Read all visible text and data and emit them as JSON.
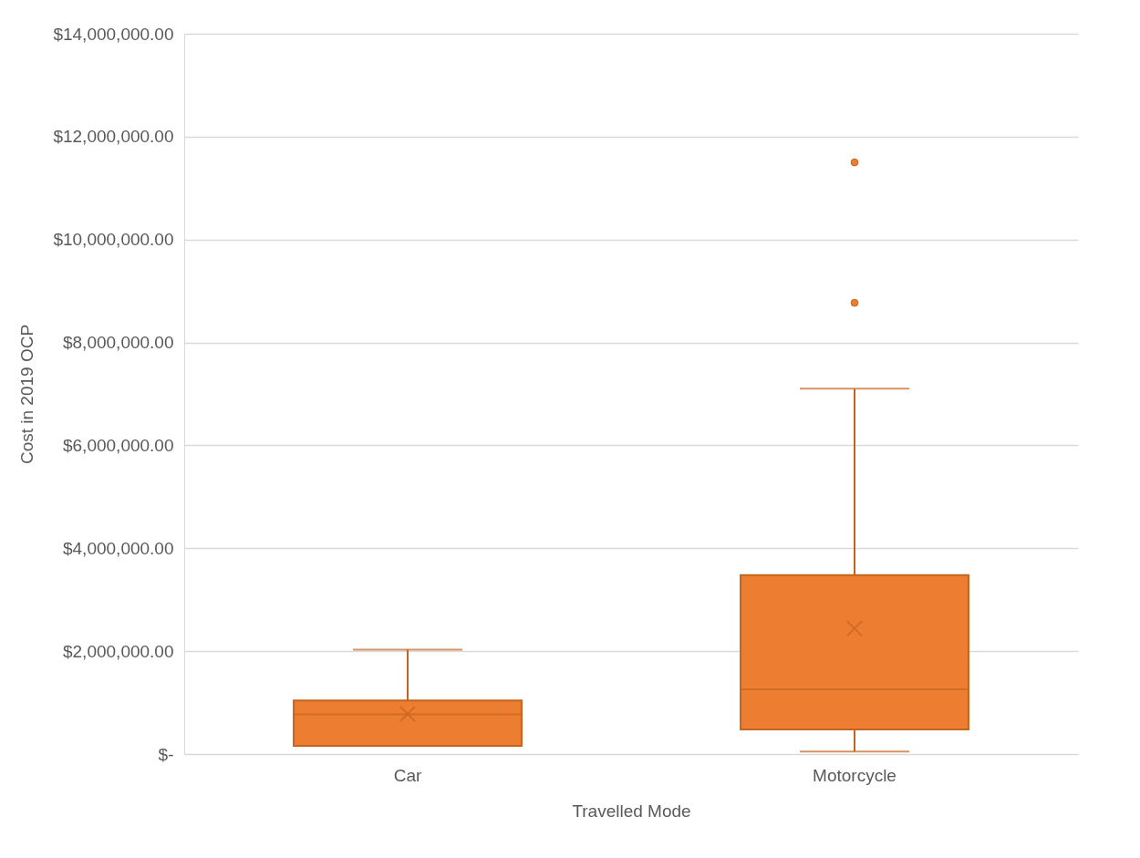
{
  "chart_data": {
    "type": "box",
    "xlabel": "Travelled Mode",
    "ylabel": "Cost in 2019 OCP",
    "categories": [
      "Car",
      "Motorcycle"
    ],
    "series": [
      {
        "color": "#ed7d31",
        "boxes": [
          {
            "low": 160000,
            "q1": 160000,
            "median": 770000,
            "q3": 1040000,
            "high": 2030000,
            "mean": 780000
          },
          {
            "low": 50000,
            "q1": 480000,
            "median": 1260000,
            "q3": 3480000,
            "high": 7100000,
            "mean": 2440000,
            "outliers": [
              8770000,
              11500000
            ]
          }
        ]
      }
    ],
    "ylim": [
      0,
      14000000
    ],
    "yticks": [
      {
        "value": 0,
        "label": "$-"
      },
      {
        "value": 2000000,
        "label": "$2,000,000.00"
      },
      {
        "value": 4000000,
        "label": "$4,000,000.00"
      },
      {
        "value": 6000000,
        "label": "$6,000,000.00"
      },
      {
        "value": 8000000,
        "label": "$8,000,000.00"
      },
      {
        "value": 10000000,
        "label": "$10,000,000.00"
      },
      {
        "value": 12000000,
        "label": "$12,000,000.00"
      },
      {
        "value": 14000000,
        "label": "$14,000,000.00"
      }
    ],
    "grid": "y"
  }
}
